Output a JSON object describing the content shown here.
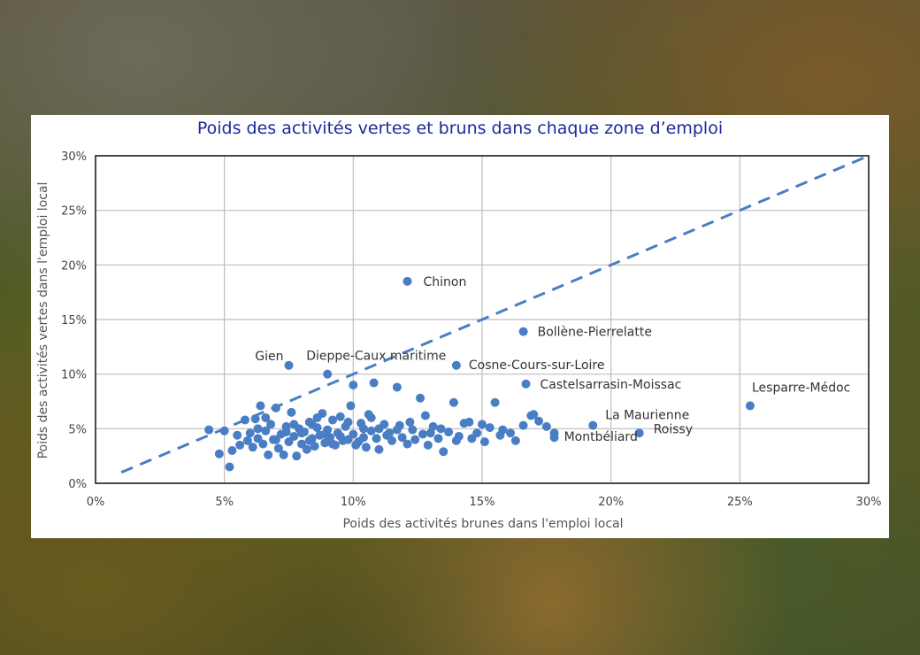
{
  "chart_data": {
    "type": "scatter",
    "title": "Poids des activités vertes et bruns dans chaque zone d’emploi",
    "xlabel": "Poids des activités brunes dans l'emploi local",
    "ylabel": "Poids des activités vertes dans l'emploi local",
    "xlim": [
      0,
      30
    ],
    "ylim": [
      0,
      30
    ],
    "x_ticks": [
      "0%",
      "5%",
      "10%",
      "15%",
      "20%",
      "25%",
      "30%"
    ],
    "y_ticks": [
      "0%",
      "5%",
      "10%",
      "15%",
      "20%",
      "25%",
      "30%"
    ],
    "grid": true,
    "reference_line": {
      "style": "dashed",
      "x": [
        1,
        30
      ],
      "y": [
        1,
        30
      ]
    },
    "point_color": "#4a7ec4",
    "labeled_points": [
      {
        "label": "Chinon",
        "x": 12.1,
        "y": 18.5
      },
      {
        "label": "Bollène-Pierrelatte",
        "x": 16.6,
        "y": 13.9
      },
      {
        "label": "Gien",
        "x": 7.5,
        "y": 10.8
      },
      {
        "label": "Dieppe-Caux maritime",
        "x": 9.0,
        "y": 10.0
      },
      {
        "label": "Cosne-Cours-sur-Loire",
        "x": 14.0,
        "y": 10.8
      },
      {
        "label": "Castelsarrasin-Moissac",
        "x": 16.7,
        "y": 9.1
      },
      {
        "label": "Lesparre-Médoc",
        "x": 25.4,
        "y": 7.1
      },
      {
        "label": "La Maurienne",
        "x": 19.3,
        "y": 5.3
      },
      {
        "label": "Roissy",
        "x": 21.1,
        "y": 4.6
      },
      {
        "label": "Montbéliard",
        "x": 17.8,
        "y": 4.2
      }
    ],
    "points": [
      [
        4.4,
        4.9
      ],
      [
        4.8,
        2.7
      ],
      [
        5.0,
        4.8
      ],
      [
        5.2,
        1.5
      ],
      [
        5.3,
        3.0
      ],
      [
        5.5,
        4.4
      ],
      [
        5.6,
        3.5
      ],
      [
        5.8,
        5.8
      ],
      [
        5.9,
        3.9
      ],
      [
        6.0,
        4.6
      ],
      [
        6.1,
        3.3
      ],
      [
        6.2,
        5.9
      ],
      [
        6.3,
        4.1
      ],
      [
        6.4,
        7.1
      ],
      [
        6.5,
        3.6
      ],
      [
        6.6,
        4.8
      ],
      [
        6.7,
        2.6
      ],
      [
        6.8,
        5.4
      ],
      [
        6.9,
        4.0
      ],
      [
        7.0,
        6.9
      ],
      [
        7.1,
        3.2
      ],
      [
        7.2,
        4.5
      ],
      [
        7.3,
        2.6
      ],
      [
        7.4,
        5.2
      ],
      [
        7.5,
        3.8
      ],
      [
        7.6,
        6.5
      ],
      [
        7.7,
        4.3
      ],
      [
        7.8,
        2.5
      ],
      [
        7.9,
        5.0
      ],
      [
        8.0,
        3.6
      ],
      [
        8.1,
        4.7
      ],
      [
        8.2,
        3.1
      ],
      [
        8.3,
        5.6
      ],
      [
        8.4,
        4.1
      ],
      [
        8.5,
        3.4
      ],
      [
        8.6,
        5.1
      ],
      [
        8.7,
        4.4
      ],
      [
        8.8,
        6.4
      ],
      [
        8.9,
        3.7
      ],
      [
        9.0,
        4.9
      ],
      [
        9.1,
        4.2
      ],
      [
        9.2,
        5.8
      ],
      [
        9.3,
        3.5
      ],
      [
        9.4,
        4.6
      ],
      [
        9.5,
        6.1
      ],
      [
        9.6,
        3.9
      ],
      [
        9.7,
        5.2
      ],
      [
        9.8,
        4.0
      ],
      [
        9.9,
        7.1
      ],
      [
        10.0,
        4.5
      ],
      [
        10.0,
        9.0
      ],
      [
        10.2,
        3.8
      ],
      [
        10.3,
        5.5
      ],
      [
        10.4,
        4.2
      ],
      [
        10.5,
        3.3
      ],
      [
        10.6,
        6.3
      ],
      [
        10.7,
        4.8
      ],
      [
        10.8,
        9.2
      ],
      [
        10.9,
        4.1
      ],
      [
        11.0,
        3.1
      ],
      [
        11.2,
        5.4
      ],
      [
        11.3,
        4.4
      ],
      [
        11.5,
        3.9
      ],
      [
        11.7,
        4.9
      ],
      [
        11.7,
        8.8
      ],
      [
        11.9,
        4.2
      ],
      [
        12.1,
        3.6
      ],
      [
        12.2,
        5.6
      ],
      [
        12.4,
        4.0
      ],
      [
        12.6,
        7.8
      ],
      [
        12.7,
        4.5
      ],
      [
        12.9,
        3.5
      ],
      [
        13.1,
        5.2
      ],
      [
        13.3,
        4.1
      ],
      [
        13.5,
        2.9
      ],
      [
        13.7,
        4.7
      ],
      [
        13.9,
        7.4
      ],
      [
        14.1,
        4.3
      ],
      [
        14.3,
        5.5
      ],
      [
        14.6,
        4.1
      ],
      [
        14.8,
        4.6
      ],
      [
        15.1,
        3.8
      ],
      [
        15.3,
        5.1
      ],
      [
        15.5,
        7.4
      ],
      [
        15.7,
        4.4
      ],
      [
        16.1,
        4.6
      ],
      [
        16.3,
        3.9
      ],
      [
        16.9,
        6.2
      ],
      [
        17.2,
        5.7
      ],
      [
        17.5,
        5.2
      ],
      [
        17.8,
        4.6
      ],
      [
        6.3,
        5.0
      ],
      [
        6.6,
        6.0
      ],
      [
        7.0,
        4.0
      ],
      [
        7.4,
        4.7
      ],
      [
        7.7,
        5.4
      ],
      [
        8.0,
        4.6
      ],
      [
        8.3,
        3.9
      ],
      [
        8.6,
        6.0
      ],
      [
        8.9,
        4.5
      ],
      [
        9.2,
        3.6
      ],
      [
        9.5,
        4.3
      ],
      [
        9.8,
        5.6
      ],
      [
        10.1,
        3.5
      ],
      [
        10.4,
        5.0
      ],
      [
        10.7,
        6.0
      ],
      [
        11.0,
        5.0
      ],
      [
        11.4,
        4.6
      ],
      [
        11.8,
        5.3
      ],
      [
        12.3,
        4.9
      ],
      [
        12.8,
        6.2
      ],
      [
        13.4,
        5.0
      ],
      [
        14.0,
        3.9
      ],
      [
        14.5,
        5.6
      ],
      [
        15.0,
        5.4
      ],
      [
        15.8,
        4.9
      ],
      [
        16.6,
        5.3
      ],
      [
        17.0,
        6.3
      ],
      [
        13.0,
        4.6
      ],
      [
        8.4,
        5.4
      ]
    ]
  }
}
